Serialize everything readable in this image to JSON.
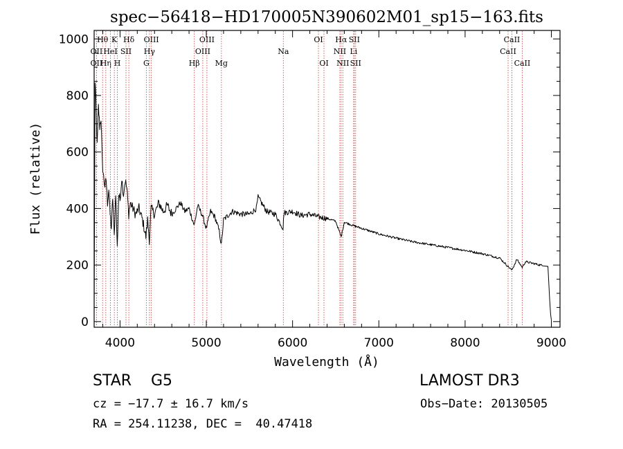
{
  "chart_data": {
    "type": "line",
    "title": "spec−56418−HD170005N390602M01_sp15−163.fits",
    "xlabel": "Wavelength (Å)",
    "ylabel": "Flux (relative)",
    "xlim": [
      3700,
      9100
    ],
    "ylim": [
      -20,
      1030
    ],
    "xticks": [
      4000,
      5000,
      6000,
      7000,
      8000,
      9000
    ],
    "xtick_labels": [
      "4000",
      "5000",
      "6000",
      "7000",
      "8000",
      "9000"
    ],
    "yticks": [
      0,
      200,
      400,
      600,
      800,
      1000
    ],
    "ytick_labels": [
      "0",
      "200",
      "400",
      "600",
      "800",
      "1000"
    ],
    "grid": false,
    "series": [
      {
        "name": "flux",
        "x": [
          3700,
          3710,
          3720,
          3735,
          3750,
          3765,
          3780,
          3795,
          3810,
          3825,
          3840,
          3855,
          3870,
          3885,
          3900,
          3915,
          3933,
          3950,
          3968,
          3985,
          4000,
          4020,
          4040,
          4060,
          4080,
          4101,
          4120,
          4150,
          4180,
          4220,
          4260,
          4300,
          4320,
          4340,
          4360,
          4400,
          4450,
          4500,
          4550,
          4600,
          4650,
          4700,
          4750,
          4800,
          4861,
          4900,
          4950,
          5000,
          5050,
          5100,
          5150,
          5175,
          5200,
          5300,
          5400,
          5500,
          5580,
          5600,
          5700,
          5800,
          5890,
          5900,
          6000,
          6100,
          6200,
          6300,
          6400,
          6500,
          6563,
          6600,
          6700,
          6800,
          6900,
          7000,
          7200,
          7400,
          7600,
          7800,
          8000,
          8200,
          8400,
          8498,
          8542,
          8600,
          8662,
          8700,
          8800,
          8900,
          8960,
          8980,
          8990,
          9000
        ],
        "y": [
          20,
          840,
          780,
          620,
          760,
          690,
          720,
          560,
          510,
          480,
          500,
          420,
          470,
          380,
          330,
          440,
          300,
          460,
          260,
          450,
          430,
          510,
          450,
          500,
          470,
          380,
          420,
          400,
          380,
          400,
          360,
          300,
          360,
          290,
          400,
          380,
          420,
          390,
          410,
          380,
          400,
          420,
          390,
          400,
          340,
          410,
          380,
          330,
          390,
          370,
          320,
          270,
          360,
          390,
          380,
          380,
          400,
          440,
          390,
          380,
          330,
          385,
          390,
          375,
          380,
          370,
          365,
          355,
          300,
          352,
          340,
          330,
          320,
          310,
          295,
          282,
          272,
          262,
          252,
          240,
          225,
          195,
          182,
          220,
          192,
          212,
          205,
          198,
          195,
          80,
          30,
          5
        ]
      }
    ],
    "line_markers": [
      {
        "label": "Hθ",
        "x": 3798,
        "row": 1
      },
      {
        "label": "OII",
        "x": 3727,
        "row": 2
      },
      {
        "label": "OII",
        "x": 3727,
        "row": 3
      },
      {
        "label": "Hη",
        "x": 3835,
        "row": 3
      },
      {
        "label": "HeI",
        "x": 3889,
        "row": 2
      },
      {
        "label": "K",
        "x": 3934,
        "row": 1
      },
      {
        "label": "H",
        "x": 3969,
        "row": 3
      },
      {
        "label": "SII",
        "x": 4069,
        "row": 2
      },
      {
        "label": "Hδ",
        "x": 4102,
        "row": 1
      },
      {
        "label": "OIII",
        "x": 4363,
        "row": 1
      },
      {
        "label": "Hγ",
        "x": 4341,
        "row": 2
      },
      {
        "label": "G",
        "x": 4305,
        "row": 3
      },
      {
        "label": "Hβ",
        "x": 4861,
        "row": 3
      },
      {
        "label": "OIII",
        "x": 4959,
        "row": 2
      },
      {
        "label": "OIII",
        "x": 5007,
        "row": 1
      },
      {
        "label": "Mg",
        "x": 5175,
        "row": 3
      },
      {
        "label": "Na",
        "x": 5893,
        "row": 2
      },
      {
        "label": "OI",
        "x": 6300,
        "row": 1
      },
      {
        "label": "OI",
        "x": 6364,
        "row": 3
      },
      {
        "label": "NII",
        "x": 6548,
        "row": 2
      },
      {
        "label": "Hα",
        "x": 6563,
        "row": 1
      },
      {
        "label": "NII",
        "x": 6583,
        "row": 3
      },
      {
        "label": "Li",
        "x": 6708,
        "row": 2
      },
      {
        "label": "SII",
        "x": 6716,
        "row": 1
      },
      {
        "label": "SII",
        "x": 6731,
        "row": 3
      },
      {
        "label": "CaII",
        "x": 8498,
        "row": 2
      },
      {
        "label": "CaII",
        "x": 8542,
        "row": 1
      },
      {
        "label": "CaII",
        "x": 8662,
        "row": 3
      }
    ]
  },
  "info": {
    "class_label": "STAR    G5",
    "survey": "LAMOST DR3",
    "redshift": "cz = −17.7 ± 16.7 km/s",
    "obs_date": "Obs−Date: 20130505",
    "ra_dec": "RA = 254.11238, DEC =  40.47418"
  },
  "colors": {
    "spectrum": "#000000",
    "marker_line": "#d24a4a",
    "axis": "#000000"
  }
}
